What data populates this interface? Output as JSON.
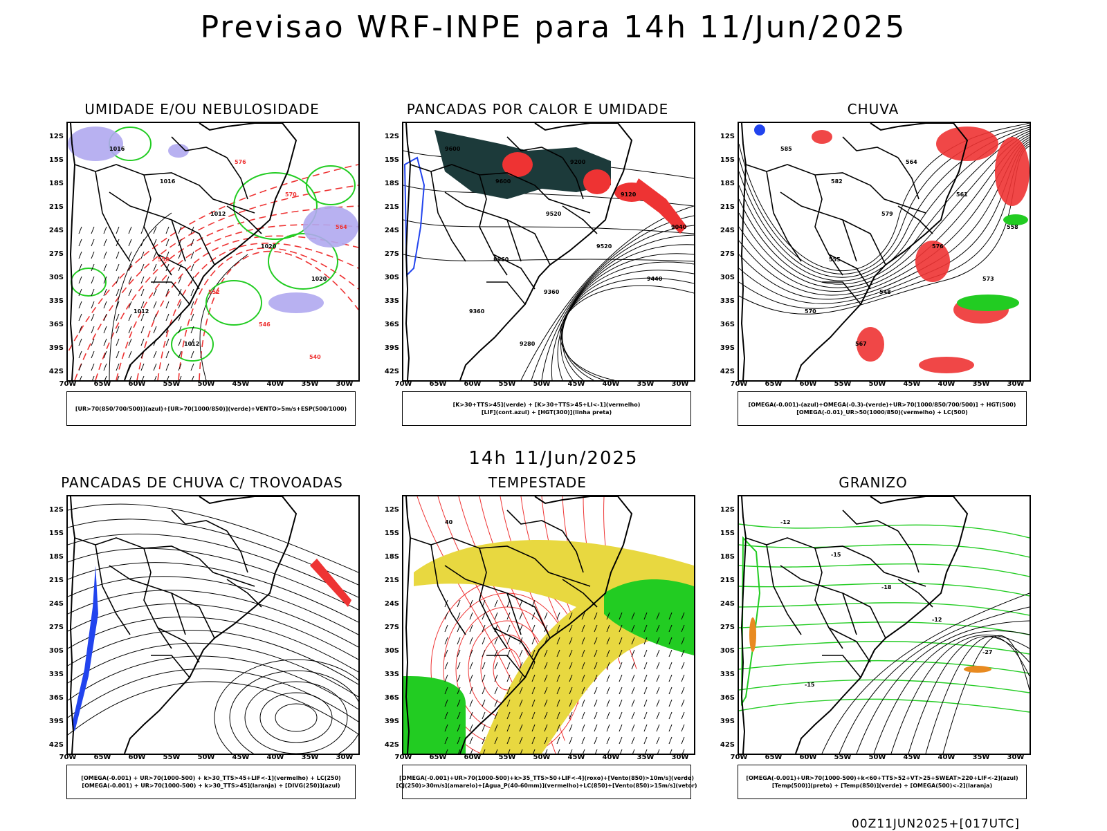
{
  "title": "Previsao WRF-INPE  para 14h 11/Jun/2025",
  "subtitle": "14h 11/Jun/2025",
  "footer": "00Z11JUN2025+[017UTC]",
  "axis": {
    "lat_labels": [
      "12S",
      "15S",
      "18S",
      "21S",
      "24S",
      "27S",
      "30S",
      "33S",
      "36S",
      "39S",
      "42S"
    ],
    "lon_labels": [
      "70W",
      "65W",
      "60W",
      "55W",
      "50W",
      "45W",
      "40W",
      "35W",
      "30W"
    ]
  },
  "colors": {
    "contour": "#000000",
    "green": "#22cc22",
    "red": "#ee3333",
    "blue": "#2244ee",
    "lavender": "#b0a8f0",
    "yellow": "#e8d840",
    "darkteal": "#1c3a3a",
    "orange": "#e88a20"
  },
  "panels": [
    {
      "title": "UMIDADE E/OU NEBULOSIDADE",
      "legend": [
        "[UR>70(850/700/500)](azul)+[UR>70(1000/850)](verde)+VENTO>5m/s+ESP(500/1000)"
      ],
      "labels": [
        "1016",
        "1016",
        "1012",
        "1020",
        "1020",
        "1012",
        "1012",
        "576",
        "570",
        "564",
        "558",
        "552",
        "546",
        "540"
      ]
    },
    {
      "title": "PANCADAS POR CALOR E UMIDADE",
      "legend": [
        "[K>30+TTS>45](verde) + [K>30+TTS>45+LI<-1](vermelho)",
        "[LIF](cont.azul) + [HGT(300)](linha preta)"
      ],
      "labels": [
        "9600",
        "9600",
        "9520",
        "9520",
        "9440",
        "9360",
        "9280",
        "9200",
        "9120",
        "9040",
        "8960",
        "9360"
      ]
    },
    {
      "title": "CHUVA",
      "legend": [
        "[OMEGA(-0.001)-(azul)+OMEGA(-0.3)-(verde)+UR>70(1000/850/700/500)] + HGT(500)",
        "[OMEGA(-0.01)_UR>50(1000/850)(vermelho) + LC(500)"
      ],
      "labels": [
        "585",
        "582",
        "579",
        "576",
        "573",
        "570",
        "567",
        "564",
        "561",
        "558",
        "555",
        "548"
      ]
    },
    {
      "title": "PANCADAS DE CHUVA C/ TROVOADAS",
      "legend": [
        "[OMEGA(-0.001) + UR>70(1000-500) + k>30_TTS>45+LIF<-1](vermelho) + LC(250)",
        "[OMEGA(-0.001) + UR>70(1000-500) + k>30_TTS>45](laranja) + [DIVG(250)](azul)"
      ],
      "labels": []
    },
    {
      "title": "TEMPESTADE",
      "legend": [
        "[OMEGA(-0.001)+UR>70(1000-500)+k>35_TTS>50+LIF<-4](roxo)+[Vento(850)>10m/s](verde)",
        "[CJ(250)>30m/s](amarelo)+[Agua_P(40-60mm)](vermelho)+LC(850)+[Vento(850)>15m/s](vetor)"
      ],
      "labels": [
        "40"
      ]
    },
    {
      "title": "GRANIZO",
      "legend": [
        "[OMEGA(-0.001)+UR>70(1000-500)+k<60+TTS>52+VT>25+SWEAT>220+LIF<-2](azul)",
        "[Temp(500)](preto) + [Temp(850)](verde) + [OMEGA(500)<-2](laranja)"
      ],
      "labels": [
        "-12",
        "-15",
        "-18",
        "-12",
        "-27",
        "-15"
      ]
    }
  ]
}
